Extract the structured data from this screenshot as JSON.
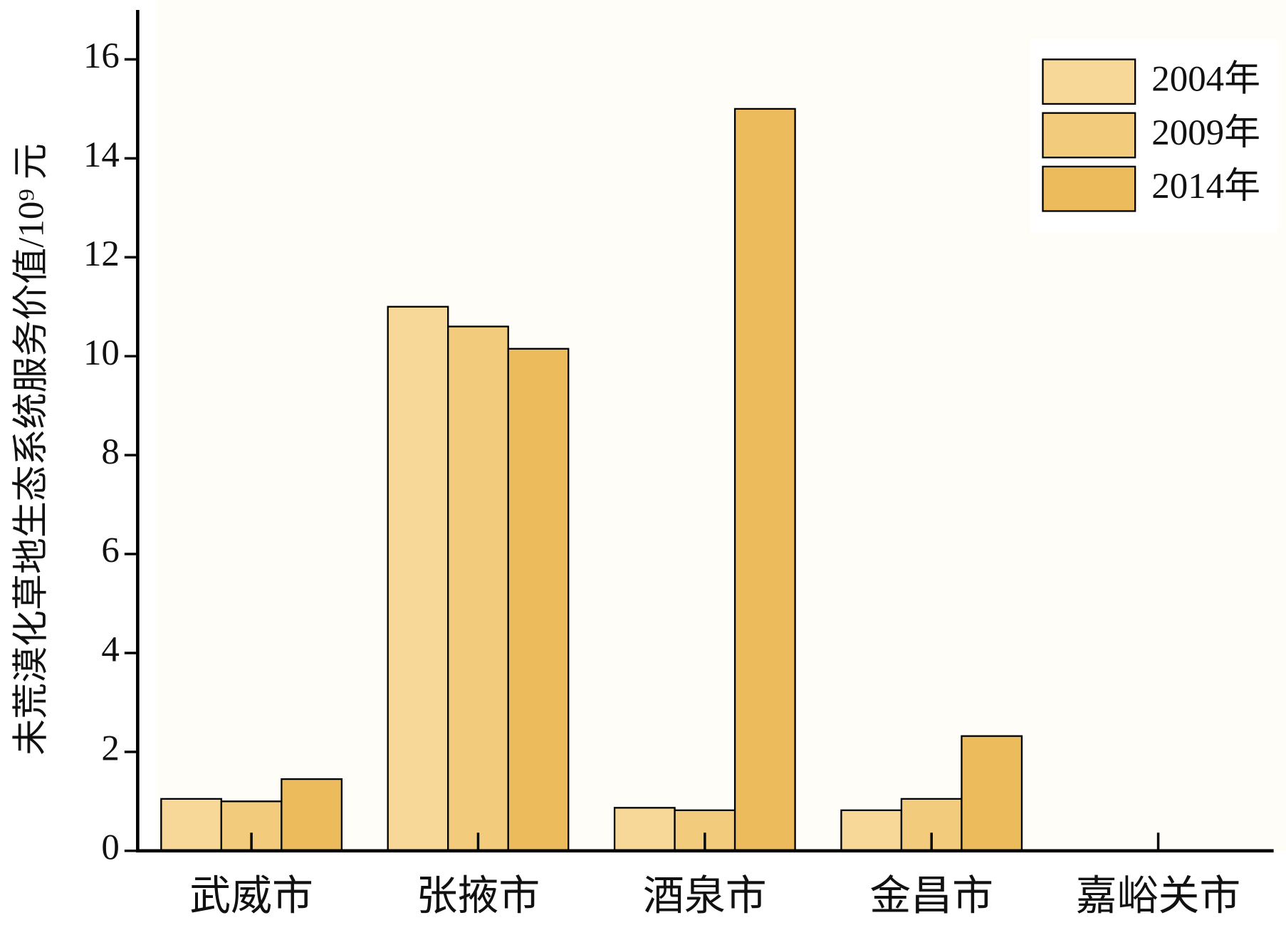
{
  "chart_data": {
    "type": "bar",
    "y_label": "未荒漠化草地生态系统服务价值/10⁹ 元",
    "categories": [
      "武威市",
      "张掖市",
      "酒泉市",
      "金昌市",
      "嘉峪关市"
    ],
    "series": [
      {
        "name": "2004年",
        "color": "#f8d898",
        "values": [
          1.05,
          11.0,
          0.87,
          0.82,
          0
        ]
      },
      {
        "name": "2009年",
        "color": "#f2cc7c",
        "values": [
          1.0,
          10.6,
          0.82,
          1.05,
          0
        ]
      },
      {
        "name": "2014年",
        "color": "#ebbb5c",
        "values": [
          1.45,
          10.15,
          15.0,
          2.32,
          0
        ]
      }
    ],
    "ylim": [
      0,
      17
    ],
    "yticks": [
      0,
      2,
      4,
      6,
      8,
      10,
      12,
      14,
      16
    ],
    "legend": "upper right"
  }
}
